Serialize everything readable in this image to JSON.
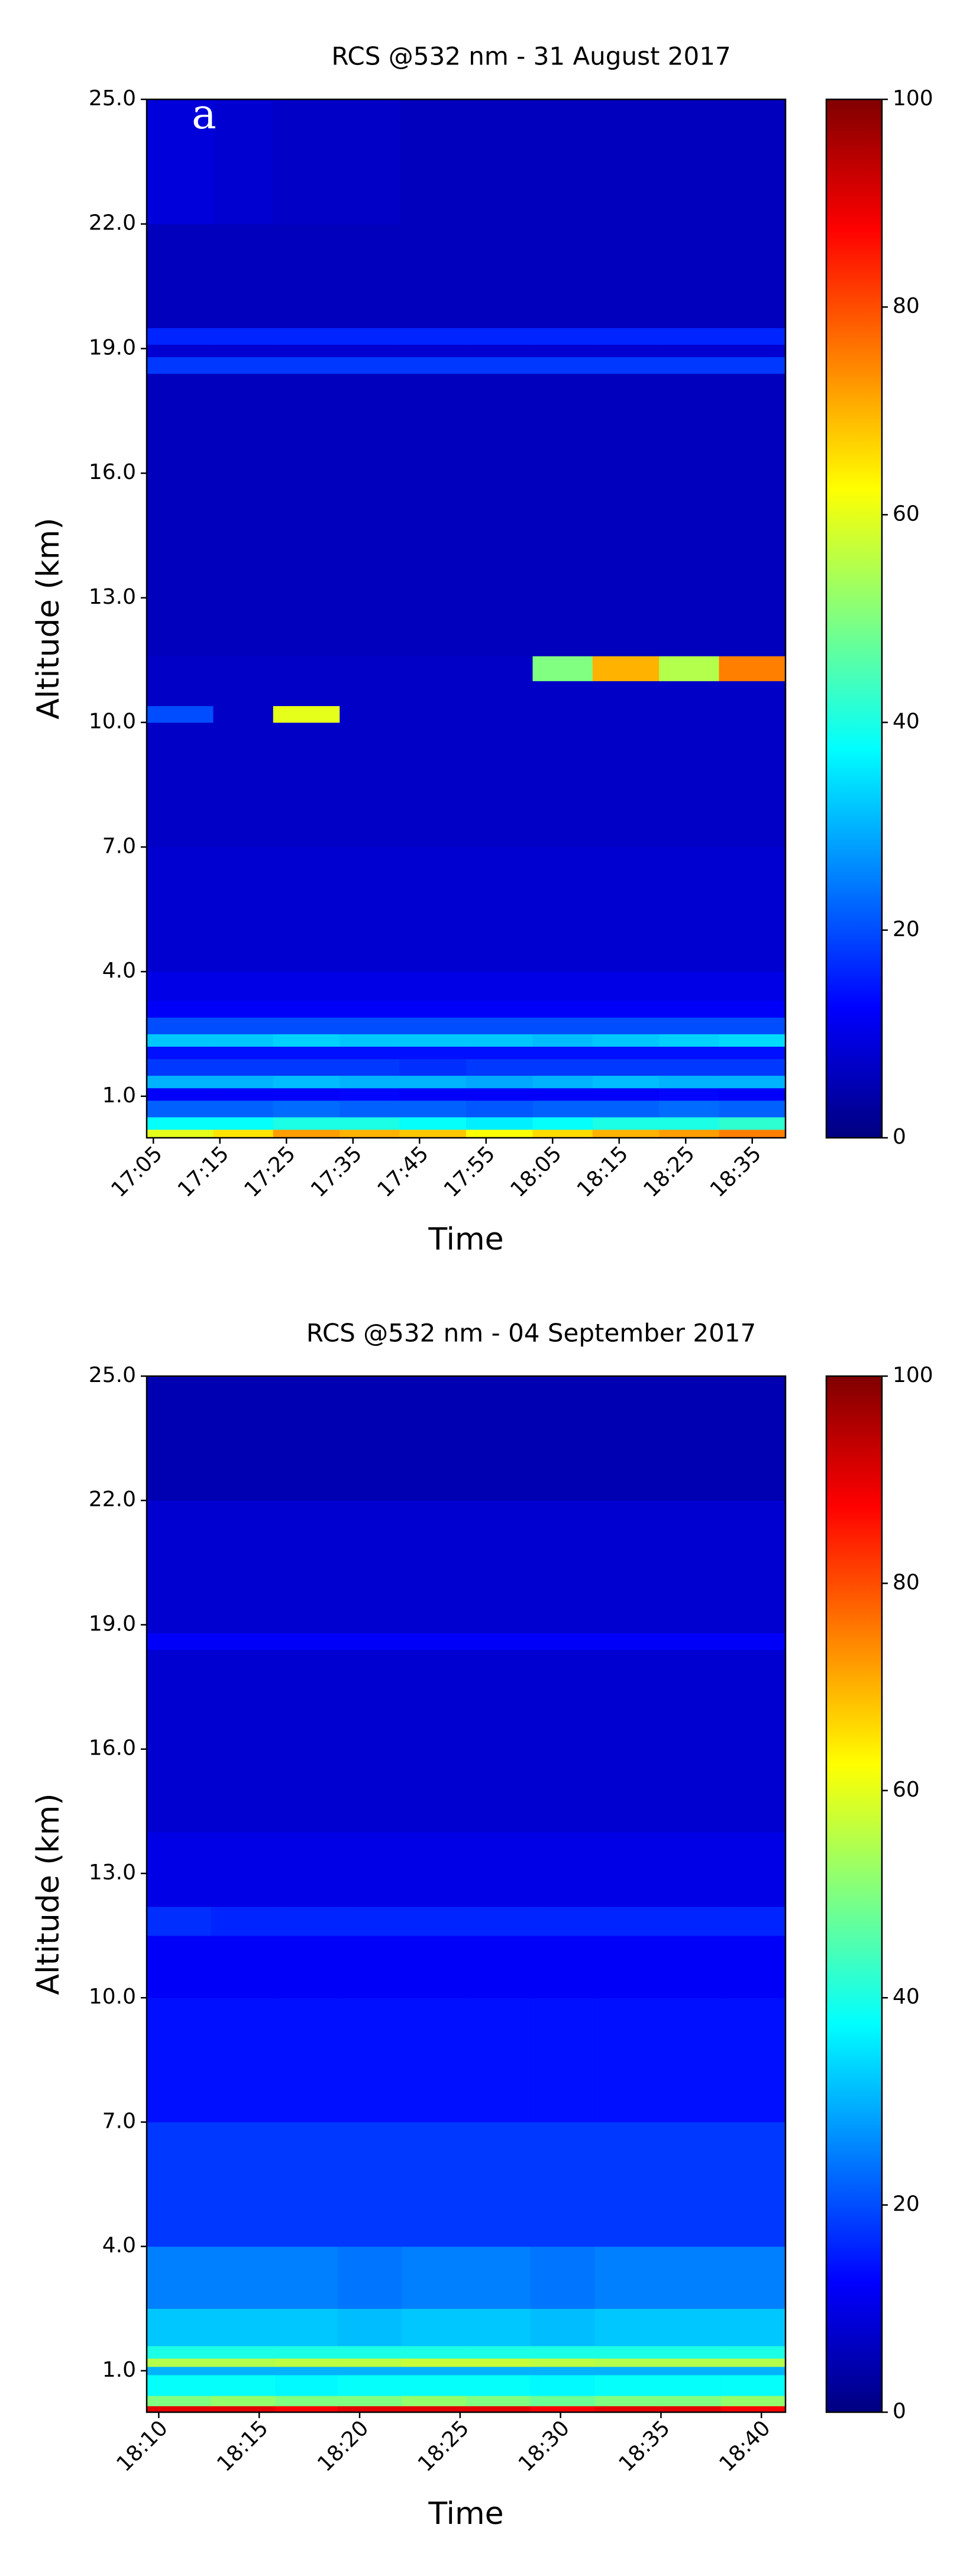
{
  "chart_data": [
    {
      "type": "heatmap",
      "title": "RCS @532 nm - 31 August 2017",
      "annotation": "a",
      "xlabel": "Time",
      "ylabel": "Altitude (km)",
      "xlim": [
        1024,
        1120
      ],
      "xticks": [
        {
          "value": 1025,
          "label": "17:05"
        },
        {
          "value": 1035,
          "label": "17:15"
        },
        {
          "value": 1045,
          "label": "17:25"
        },
        {
          "value": 1055,
          "label": "17:35"
        },
        {
          "value": 1065,
          "label": "17:45"
        },
        {
          "value": 1075,
          "label": "17:55"
        },
        {
          "value": 1085,
          "label": "18:05"
        },
        {
          "value": 1095,
          "label": "18:15"
        },
        {
          "value": 1105,
          "label": "18:25"
        },
        {
          "value": 1115,
          "label": "18:35"
        }
      ],
      "ylim": [
        0,
        25
      ],
      "yticks": [
        {
          "value": 1,
          "label": "1.0"
        },
        {
          "value": 4,
          "label": "4.0"
        },
        {
          "value": 7,
          "label": "7.0"
        },
        {
          "value": 10,
          "label": "10.0"
        },
        {
          "value": 13,
          "label": "13.0"
        },
        {
          "value": 16,
          "label": "16.0"
        },
        {
          "value": 19,
          "label": "19.0"
        },
        {
          "value": 22,
          "label": "22.0"
        },
        {
          "value": 25,
          "label": "25.0"
        }
      ],
      "x_bins": [
        1024,
        1034,
        1043,
        1053,
        1062,
        1072,
        1082,
        1091,
        1101,
        1110,
        1120
      ],
      "y_bins": [
        0,
        0.2,
        0.5,
        0.9,
        1.2,
        1.5,
        1.9,
        2.2,
        2.5,
        2.9,
        3.3,
        4,
        7,
        10,
        10.4,
        11,
        11.6,
        14,
        18.4,
        18.8,
        19.1,
        19.5,
        22,
        25
      ],
      "z": [
        [
          60,
          65,
          72,
          70,
          68,
          62,
          66,
          70,
          72,
          75
        ],
        [
          38,
          38,
          40,
          40,
          38,
          36,
          38,
          40,
          40,
          42
        ],
        [
          22,
          22,
          23,
          22,
          22,
          21,
          22,
          22,
          23,
          22
        ],
        [
          12,
          12,
          12,
          13,
          12,
          12,
          12,
          12,
          13,
          12
        ],
        [
          30,
          30,
          31,
          30,
          30,
          29,
          30,
          31,
          30,
          30
        ],
        [
          18,
          18,
          18,
          18,
          17,
          18,
          18,
          18,
          18,
          18
        ],
        [
          14,
          14,
          14,
          14,
          14,
          14,
          14,
          14,
          14,
          14
        ],
        [
          32,
          32,
          33,
          32,
          32,
          32,
          31,
          32,
          33,
          34
        ],
        [
          20,
          20,
          20,
          20,
          20,
          20,
          20,
          20,
          20,
          20
        ],
        [
          12,
          12,
          12,
          12,
          12,
          12,
          12,
          12,
          12,
          12
        ],
        [
          10,
          10,
          10,
          10,
          10,
          10,
          10,
          10,
          10,
          10
        ],
        [
          8,
          8,
          8,
          8,
          8,
          8,
          8,
          8,
          8,
          8
        ],
        [
          7,
          7,
          7,
          7,
          7,
          7,
          7,
          7,
          7,
          7
        ],
        [
          20,
          7,
          60,
          7,
          7,
          7,
          7,
          7,
          7,
          7
        ],
        [
          7,
          7,
          7,
          7,
          7,
          7,
          7,
          7,
          7,
          7
        ],
        [
          7,
          7,
          7,
          7,
          7,
          7,
          50,
          70,
          55,
          75
        ],
        [
          6,
          6,
          6,
          6,
          6,
          6,
          6,
          6,
          6,
          6
        ],
        [
          6,
          6,
          6,
          6,
          6,
          6,
          6,
          6,
          6,
          6
        ],
        [
          18,
          18,
          18,
          18,
          18,
          18,
          18,
          18,
          18,
          18
        ],
        [
          8,
          8,
          8,
          8,
          8,
          8,
          8,
          8,
          8,
          8
        ],
        [
          16,
          16,
          16,
          16,
          16,
          16,
          16,
          16,
          16,
          16
        ],
        [
          6,
          6,
          6,
          6,
          6,
          6,
          6,
          6,
          6,
          6
        ],
        [
          9,
          8,
          7,
          7,
          6,
          6,
          6,
          6,
          6,
          6
        ]
      ],
      "clim": [
        0,
        100
      ],
      "colormap": "jet",
      "cticks": [
        0,
        20,
        40,
        60,
        80,
        100
      ]
    },
    {
      "type": "heatmap",
      "title": "RCS @532 nm - 04 September 2017",
      "xlabel": "Time",
      "ylabel": "Altitude (km)",
      "xlim": [
        1089.4,
        1121.2
      ],
      "xticks": [
        {
          "value": 1090,
          "label": "18:10"
        },
        {
          "value": 1095,
          "label": "18:15"
        },
        {
          "value": 1100,
          "label": "18:20"
        },
        {
          "value": 1105,
          "label": "18:25"
        },
        {
          "value": 1110,
          "label": "18:30"
        },
        {
          "value": 1115,
          "label": "18:35"
        },
        {
          "value": 1120,
          "label": "18:40"
        }
      ],
      "ylim": [
        0,
        25
      ],
      "yticks": [
        {
          "value": 1,
          "label": "1.0"
        },
        {
          "value": 4,
          "label": "4.0"
        },
        {
          "value": 7,
          "label": "7.0"
        },
        {
          "value": 10,
          "label": "10.0"
        },
        {
          "value": 13,
          "label": "13.0"
        },
        {
          "value": 16,
          "label": "16.0"
        },
        {
          "value": 19,
          "label": "19.0"
        },
        {
          "value": 22,
          "label": "22.0"
        },
        {
          "value": 25,
          "label": "25.0"
        }
      ],
      "x_bins": [
        1089.4,
        1092.6,
        1095.8,
        1098.9,
        1102.1,
        1105.3,
        1108.5,
        1111.7,
        1114.8,
        1118,
        1121.2
      ],
      "y_bins": [
        0,
        0.15,
        0.4,
        0.9,
        1.1,
        1.3,
        1.6,
        2.5,
        4,
        7,
        10,
        11.5,
        12.2,
        14,
        18.4,
        18.8,
        22,
        25
      ],
      "z": [
        [
          90,
          90,
          88,
          90,
          90,
          90,
          88,
          90,
          90,
          88
        ],
        [
          50,
          52,
          50,
          50,
          52,
          50,
          48,
          50,
          50,
          52
        ],
        [
          38,
          38,
          37,
          38,
          38,
          38,
          37,
          38,
          38,
          38
        ],
        [
          30,
          30,
          30,
          30,
          30,
          30,
          30,
          30,
          30,
          30
        ],
        [
          55,
          55,
          56,
          56,
          57,
          57,
          56,
          55,
          55,
          55
        ],
        [
          40,
          40,
          40,
          40,
          40,
          40,
          40,
          40,
          40,
          40
        ],
        [
          32,
          32,
          32,
          31,
          32,
          32,
          31,
          32,
          32,
          32
        ],
        [
          25,
          25,
          25,
          24,
          25,
          25,
          24,
          25,
          25,
          25
        ],
        [
          18,
          18,
          18,
          18,
          18,
          18,
          18,
          18,
          18,
          18
        ],
        [
          14,
          14,
          14,
          14,
          14,
          14,
          14,
          14,
          14,
          14
        ],
        [
          12,
          12,
          12,
          12,
          12,
          12,
          12,
          12,
          12,
          12
        ],
        [
          17,
          16,
          16,
          16,
          16,
          16,
          16,
          16,
          16,
          16
        ],
        [
          10,
          10,
          10,
          10,
          10,
          10,
          10,
          10,
          10,
          10
        ],
        [
          8,
          8,
          8,
          8,
          8,
          8,
          8,
          8,
          8,
          8
        ],
        [
          12,
          12,
          12,
          12,
          12,
          12,
          12,
          12,
          12,
          12
        ],
        [
          8,
          8,
          8,
          8,
          8,
          8,
          8,
          8,
          8,
          8
        ],
        [
          5,
          5,
          5,
          5,
          5,
          5,
          5,
          5,
          5,
          5
        ]
      ],
      "clim": [
        0,
        100
      ],
      "colormap": "jet",
      "cticks": [
        0,
        20,
        40,
        60,
        80,
        100
      ]
    }
  ]
}
